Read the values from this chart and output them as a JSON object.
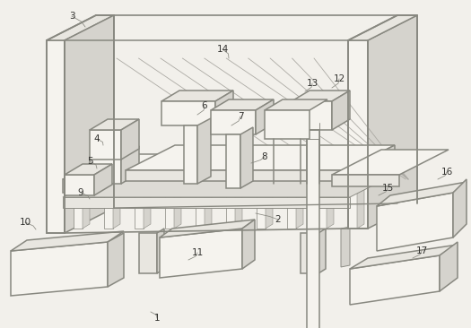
{
  "bg_color": "#f2f0eb",
  "line_color": "#888880",
  "line_color_dark": "#555550",
  "face_light": "#f5f3ee",
  "face_mid": "#e8e6e0",
  "face_dark": "#d5d3cd",
  "lw_main": 1.1,
  "lw_thin": 0.65,
  "lw_label": 0.5
}
